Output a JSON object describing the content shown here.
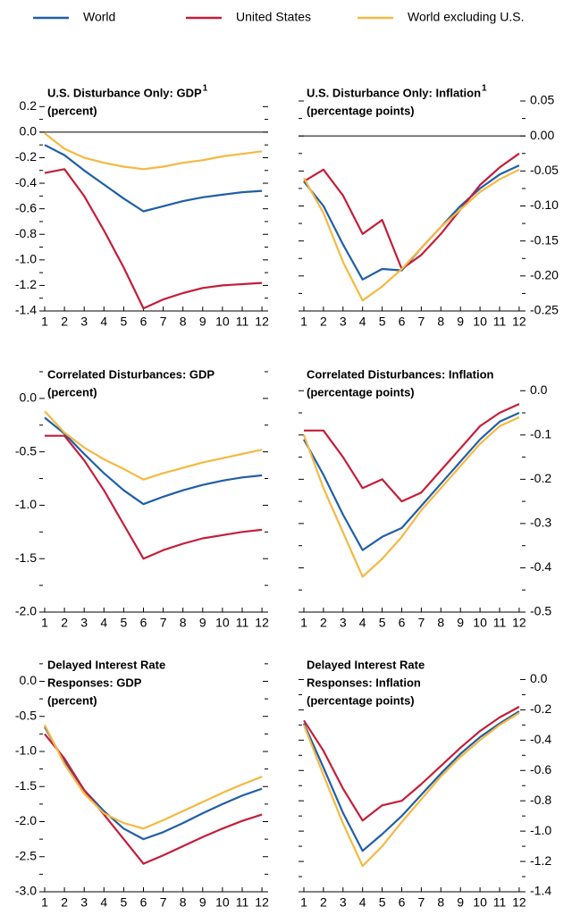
{
  "legend": [
    {
      "name": "World",
      "color": "#1f5fa6"
    },
    {
      "name": "United States",
      "color": "#c41e3a"
    },
    {
      "name": "World excluding U.S.",
      "color": "#f5b942"
    }
  ],
  "chart_data": [
    {
      "type": "line",
      "title": [
        "U.S. Disturbance Only: GDP"
      ],
      "footnote": "1",
      "subtitle": "(percent)",
      "axis_side": "left",
      "zero_line": true,
      "categories": [
        "1",
        "2",
        "3",
        "4",
        "5",
        "6",
        "7",
        "8",
        "9",
        "10",
        "11",
        "12"
      ],
      "series": [
        {
          "values": [
            -0.1,
            -0.18,
            -0.3,
            -0.41,
            -0.52,
            -0.62,
            -0.58,
            -0.54,
            -0.51,
            -0.49,
            -0.47,
            -0.46
          ]
        },
        {
          "values": [
            -0.32,
            -0.29,
            -0.5,
            -0.77,
            -1.06,
            -1.38,
            -1.31,
            -1.26,
            -1.22,
            -1.2,
            -1.19,
            -1.18
          ]
        },
        {
          "values": [
            -0.01,
            -0.13,
            -0.2,
            -0.24,
            -0.27,
            -0.29,
            -0.27,
            -0.24,
            -0.22,
            -0.19,
            -0.17,
            -0.15
          ]
        }
      ],
      "ylim": [
        -1.4,
        0.37
      ],
      "yticks": [
        0.2,
        {
          "value": 0,
          "label": "0.0"
        },
        -0.2,
        -0.4,
        -0.6,
        -0.8,
        {
          "value": -1,
          "label": "-1.0"
        },
        -1.2,
        -1.4
      ],
      "yticks_minor": [
        0.1,
        -0.1,
        -0.3,
        -0.5,
        -0.7,
        -0.9,
        -1.1,
        -1.3
      ]
    },
    {
      "type": "line",
      "title": [
        "U.S. Disturbance Only: Inflation"
      ],
      "footnote": "1",
      "subtitle": "(percentage points)",
      "axis_side": "right",
      "zero_line": true,
      "categories": [
        "1",
        "2",
        "3",
        "4",
        "5",
        "6",
        "7",
        "8",
        "9",
        "10",
        "11",
        "12"
      ],
      "series": [
        {
          "values": [
            -0.065,
            -0.1,
            -0.155,
            -0.205,
            -0.19,
            -0.192,
            -0.16,
            -0.13,
            -0.1,
            -0.075,
            -0.055,
            -0.042
          ]
        },
        {
          "values": [
            -0.065,
            -0.048,
            -0.085,
            -0.14,
            -0.12,
            -0.19,
            -0.17,
            -0.14,
            -0.105,
            -0.07,
            -0.045,
            -0.025
          ]
        },
        {
          "values": [
            -0.06,
            -0.11,
            -0.18,
            -0.235,
            -0.215,
            -0.19,
            -0.16,
            -0.13,
            -0.105,
            -0.08,
            -0.062,
            -0.048
          ]
        }
      ],
      "ylim": [
        -0.25,
        0.073
      ],
      "yticks": [
        0.05,
        {
          "value": 0,
          "label": "0.00"
        },
        -0.05,
        {
          "value": -0.1,
          "label": "-0.10"
        },
        -0.15,
        {
          "value": -0.2,
          "label": "-0.20"
        },
        -0.25
      ],
      "yticks_minor": [
        0.025,
        -0.025,
        -0.075,
        -0.125,
        -0.175,
        -0.225
      ]
    },
    {
      "type": "line",
      "title": [
        "Correlated Disturbances: GDP"
      ],
      "subtitle": "(percent)",
      "axis_side": "left",
      "zero_line": false,
      "categories": [
        "1",
        "2",
        "3",
        "4",
        "5",
        "6",
        "7",
        "8",
        "9",
        "10",
        "11",
        "12"
      ],
      "series": [
        {
          "values": [
            -0.18,
            -0.33,
            -0.52,
            -0.7,
            -0.86,
            -0.99,
            -0.92,
            -0.86,
            -0.81,
            -0.77,
            -0.74,
            -0.72
          ]
        },
        {
          "values": [
            -0.35,
            -0.35,
            -0.58,
            -0.86,
            -1.18,
            -1.5,
            -1.42,
            -1.36,
            -1.31,
            -1.28,
            -1.25,
            -1.23
          ]
        },
        {
          "values": [
            -0.12,
            -0.32,
            -0.46,
            -0.57,
            -0.66,
            -0.76,
            -0.7,
            -0.65,
            -0.6,
            -0.56,
            -0.52,
            -0.48
          ]
        }
      ],
      "ylim": [
        -2.0,
        0.3
      ],
      "yticks": [
        {
          "value": 0,
          "label": "0.0"
        },
        -0.5,
        {
          "value": -1,
          "label": "-1.0"
        },
        -1.5,
        {
          "value": -2,
          "label": "-2.0"
        }
      ],
      "yticks_minor": [
        0.25,
        -0.25,
        -0.75,
        -1.25,
        -1.75
      ]
    },
    {
      "type": "line",
      "title": [
        "Correlated Disturbances: Inflation"
      ],
      "subtitle": "(percentage points)",
      "axis_side": "right",
      "zero_line": false,
      "categories": [
        "1",
        "2",
        "3",
        "4",
        "5",
        "6",
        "7",
        "8",
        "9",
        "10",
        "11",
        "12"
      ],
      "series": [
        {
          "values": [
            -0.11,
            -0.19,
            -0.28,
            -0.36,
            -0.33,
            -0.31,
            -0.26,
            -0.21,
            -0.16,
            -0.11,
            -0.07,
            -0.05
          ]
        },
        {
          "values": [
            -0.09,
            -0.09,
            -0.15,
            -0.22,
            -0.2,
            -0.25,
            -0.23,
            -0.18,
            -0.13,
            -0.08,
            -0.05,
            -0.03
          ]
        },
        {
          "values": [
            -0.1,
            -0.22,
            -0.32,
            -0.42,
            -0.38,
            -0.33,
            -0.27,
            -0.22,
            -0.17,
            -0.12,
            -0.08,
            -0.06
          ]
        }
      ],
      "ylim": [
        -0.5,
        0.055
      ],
      "yticks": [
        {
          "value": 0,
          "label": "0.0"
        },
        -0.1,
        -0.2,
        -0.3,
        -0.4,
        -0.5
      ],
      "yticks_minor": [
        -0.05,
        -0.15,
        -0.25,
        -0.35,
        -0.45
      ]
    },
    {
      "type": "line",
      "title": [
        "Delayed Interest Rate",
        "Responses: GDP"
      ],
      "subtitle": "(percent)",
      "axis_side": "left",
      "zero_line": false,
      "categories": [
        "1",
        "2",
        "3",
        "4",
        "5",
        "6",
        "7",
        "8",
        "9",
        "10",
        "11",
        "12"
      ],
      "series": [
        {
          "values": [
            -0.65,
            -1.15,
            -1.55,
            -1.85,
            -2.1,
            -2.25,
            -2.15,
            -2.02,
            -1.88,
            -1.75,
            -1.63,
            -1.53
          ]
        },
        {
          "values": [
            -0.75,
            -1.1,
            -1.55,
            -1.9,
            -2.25,
            -2.6,
            -2.48,
            -2.35,
            -2.22,
            -2.1,
            -1.99,
            -1.9
          ]
        },
        {
          "values": [
            -0.62,
            -1.18,
            -1.6,
            -1.88,
            -2.02,
            -2.1,
            -1.98,
            -1.85,
            -1.72,
            -1.59,
            -1.47,
            -1.36
          ]
        }
      ],
      "ylim": [
        -3.0,
        0.35
      ],
      "yticks": [
        {
          "value": 0,
          "label": "0.0"
        },
        -0.5,
        {
          "value": -1,
          "label": "-1.0"
        },
        -1.5,
        {
          "value": -2,
          "label": "-2.0"
        },
        -2.5,
        {
          "value": -3,
          "label": "-3.0"
        }
      ],
      "yticks_minor": [
        0.25,
        -0.25,
        -0.75,
        -1.25,
        -1.75,
        -2.25,
        -2.75
      ]
    },
    {
      "type": "line",
      "title": [
        "Delayed Interest Rate",
        "Responses: Inflation"
      ],
      "subtitle": "(percentage points)",
      "axis_side": "right",
      "zero_line": false,
      "categories": [
        "1",
        "2",
        "3",
        "4",
        "5",
        "6",
        "7",
        "8",
        "9",
        "10",
        "11",
        "12"
      ],
      "series": [
        {
          "values": [
            -0.29,
            -0.58,
            -0.88,
            -1.13,
            -1.02,
            -0.9,
            -0.76,
            -0.62,
            -0.49,
            -0.38,
            -0.29,
            -0.21
          ]
        },
        {
          "values": [
            -0.27,
            -0.47,
            -0.72,
            -0.93,
            -0.83,
            -0.8,
            -0.69,
            -0.57,
            -0.45,
            -0.34,
            -0.25,
            -0.18
          ]
        },
        {
          "values": [
            -0.3,
            -0.63,
            -0.95,
            -1.23,
            -1.1,
            -0.94,
            -0.79,
            -0.64,
            -0.51,
            -0.4,
            -0.3,
            -0.22
          ]
        }
      ],
      "ylim": [
        -1.4,
        0.15
      ],
      "yticks": [
        {
          "value": 0,
          "label": "0.0"
        },
        -0.2,
        -0.4,
        -0.6,
        -0.8,
        {
          "value": -1,
          "label": "-1.0"
        },
        -1.2,
        -1.4
      ],
      "yticks_minor": [
        -0.1,
        -0.3,
        -0.5,
        -0.7,
        -0.9,
        -1.1,
        -1.3
      ]
    }
  ]
}
